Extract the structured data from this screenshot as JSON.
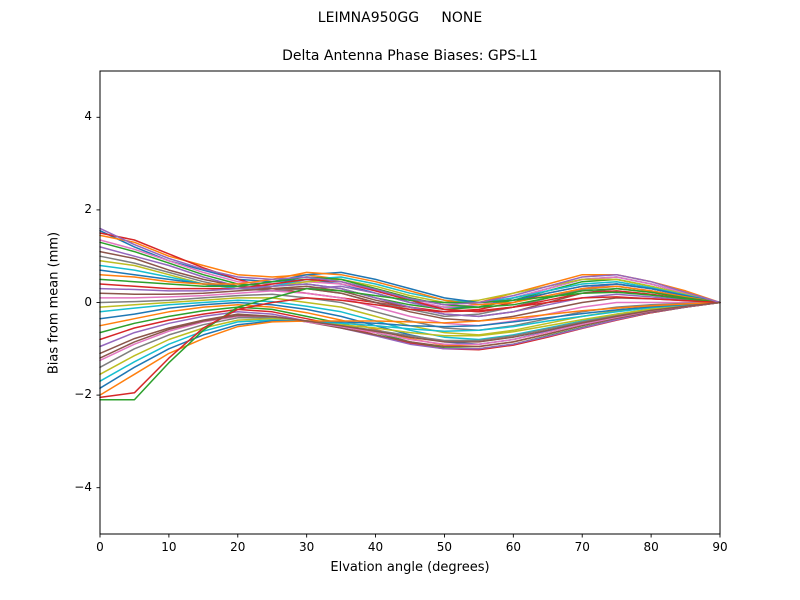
{
  "suptitle": "LEIMNA950GG     NONE",
  "chart_data": {
    "type": "line",
    "title": "Delta Antenna Phase Biases: GPS-L1",
    "xlabel": "Elvation angle (degrees)",
    "ylabel": "Bias from mean (mm)",
    "xlim": [
      0,
      90
    ],
    "ylim": [
      -5,
      5
    ],
    "grid": false,
    "legend": "none",
    "xticks": [
      0,
      10,
      20,
      30,
      40,
      50,
      60,
      70,
      80,
      90
    ],
    "xtick_labels": [
      "0",
      "10",
      "20",
      "30",
      "40",
      "50",
      "60",
      "70",
      "80",
      "90"
    ],
    "yticks": [
      -4,
      -2,
      0,
      2,
      4
    ],
    "ytick_labels": [
      "−4",
      "−2",
      "0",
      "2",
      "4"
    ],
    "palette": [
      "#1f77b4",
      "#ff7f0e",
      "#2ca02c",
      "#d62728",
      "#9467bd",
      "#8c564b",
      "#e377c2",
      "#7f7f7f",
      "#bcbd22",
      "#17becf"
    ],
    "x": [
      0,
      5,
      10,
      15,
      20,
      25,
      30,
      35,
      40,
      45,
      50,
      55,
      60,
      65,
      70,
      75,
      80,
      85,
      90
    ],
    "series": [
      {
        "values": [
          1.55,
          1.2,
          0.9,
          0.7,
          0.5,
          0.45,
          0.5,
          0.4,
          0.2,
          0.0,
          -0.1,
          -0.1,
          0.1,
          0.3,
          0.5,
          0.55,
          0.4,
          0.2,
          0.0
        ]
      },
      {
        "values": [
          1.45,
          1.3,
          1.0,
          0.8,
          0.6,
          0.55,
          0.6,
          0.5,
          0.3,
          0.1,
          -0.05,
          0.0,
          0.2,
          0.4,
          0.6,
          0.6,
          0.45,
          0.25,
          0.0
        ]
      },
      {
        "values": [
          1.3,
          1.1,
          0.85,
          0.6,
          0.4,
          0.35,
          0.4,
          0.3,
          0.1,
          -0.05,
          -0.15,
          -0.1,
          0.05,
          0.25,
          0.45,
          0.5,
          0.35,
          0.18,
          0.0
        ]
      },
      {
        "values": [
          1.5,
          1.35,
          1.05,
          0.75,
          0.5,
          0.3,
          0.2,
          0.1,
          0.0,
          -0.1,
          -0.2,
          -0.15,
          0.0,
          0.2,
          0.35,
          0.4,
          0.3,
          0.15,
          0.0
        ]
      },
      {
        "values": [
          1.2,
          1.0,
          0.8,
          0.55,
          0.35,
          0.25,
          0.3,
          0.35,
          0.2,
          0.0,
          -0.15,
          -0.2,
          -0.1,
          0.1,
          0.3,
          0.4,
          0.3,
          0.15,
          0.0
        ]
      },
      {
        "values": [
          1.1,
          0.95,
          0.7,
          0.5,
          0.35,
          0.3,
          0.35,
          0.25,
          0.05,
          -0.1,
          -0.25,
          -0.3,
          -0.2,
          0.0,
          0.2,
          0.3,
          0.22,
          0.1,
          0.0
        ]
      },
      {
        "values": [
          1.35,
          1.15,
          0.9,
          0.65,
          0.45,
          0.4,
          0.45,
          0.4,
          0.25,
          0.05,
          -0.1,
          -0.05,
          0.1,
          0.3,
          0.5,
          0.55,
          0.4,
          0.2,
          0.0
        ]
      },
      {
        "values": [
          1.0,
          0.85,
          0.65,
          0.45,
          0.3,
          0.25,
          0.3,
          0.2,
          0.0,
          -0.15,
          -0.3,
          -0.25,
          -0.1,
          0.1,
          0.28,
          0.35,
          0.25,
          0.12,
          0.0
        ]
      },
      {
        "values": [
          0.9,
          0.8,
          0.6,
          0.4,
          0.3,
          0.35,
          0.45,
          0.5,
          0.35,
          0.15,
          0.0,
          0.05,
          0.2,
          0.35,
          0.5,
          0.5,
          0.35,
          0.18,
          0.0
        ]
      },
      {
        "values": [
          0.8,
          0.7,
          0.55,
          0.4,
          0.3,
          0.35,
          0.5,
          0.55,
          0.4,
          0.2,
          0.05,
          0.0,
          0.1,
          0.25,
          0.4,
          0.45,
          0.32,
          0.16,
          0.0
        ]
      },
      {
        "values": [
          0.7,
          0.6,
          0.5,
          0.4,
          0.35,
          0.45,
          0.6,
          0.65,
          0.5,
          0.3,
          0.1,
          0.0,
          0.05,
          0.2,
          0.35,
          0.4,
          0.3,
          0.15,
          0.0
        ]
      },
      {
        "values": [
          0.6,
          0.55,
          0.45,
          0.4,
          0.4,
          0.5,
          0.65,
          0.6,
          0.45,
          0.25,
          0.05,
          -0.05,
          0.0,
          0.15,
          0.3,
          0.35,
          0.25,
          0.12,
          0.0
        ]
      },
      {
        "values": [
          0.5,
          0.45,
          0.4,
          0.35,
          0.35,
          0.45,
          0.55,
          0.5,
          0.3,
          0.1,
          -0.05,
          -0.1,
          -0.05,
          0.1,
          0.25,
          0.3,
          0.22,
          0.1,
          0.0
        ]
      },
      {
        "values": [
          0.4,
          0.35,
          0.3,
          0.3,
          0.3,
          0.4,
          0.5,
          0.45,
          0.25,
          0.05,
          -0.15,
          -0.2,
          -0.1,
          0.05,
          0.2,
          0.25,
          0.18,
          0.08,
          0.0
        ]
      },
      {
        "values": [
          0.3,
          0.28,
          0.25,
          0.25,
          0.3,
          0.35,
          0.4,
          0.3,
          0.1,
          -0.1,
          -0.25,
          -0.3,
          -0.2,
          -0.05,
          0.1,
          0.18,
          0.12,
          0.06,
          0.0
        ]
      },
      {
        "values": [
          0.2,
          0.18,
          0.18,
          0.2,
          0.25,
          0.3,
          0.3,
          0.2,
          0.0,
          -0.2,
          -0.35,
          -0.4,
          -0.3,
          -0.15,
          0.0,
          0.1,
          0.08,
          0.04,
          0.0
        ]
      },
      {
        "values": [
          0.1,
          0.1,
          0.12,
          0.15,
          0.2,
          0.25,
          0.2,
          0.1,
          -0.1,
          -0.3,
          -0.45,
          -0.5,
          -0.4,
          -0.25,
          -0.1,
          0.0,
          0.0,
          0.0,
          0.0
        ]
      },
      {
        "values": [
          0.0,
          0.02,
          0.05,
          0.1,
          0.15,
          0.18,
          0.1,
          0.0,
          -0.2,
          -0.4,
          -0.55,
          -0.6,
          -0.5,
          -0.35,
          -0.2,
          -0.1,
          -0.05,
          -0.02,
          0.0
        ]
      },
      {
        "values": [
          -0.1,
          -0.05,
          0.0,
          0.05,
          0.1,
          0.1,
          0.0,
          -0.1,
          -0.3,
          -0.5,
          -0.65,
          -0.7,
          -0.6,
          -0.45,
          -0.3,
          -0.18,
          -0.1,
          -0.05,
          0.0
        ]
      },
      {
        "values": [
          -0.2,
          -0.12,
          -0.05,
          0.0,
          0.05,
          0.02,
          -0.08,
          -0.2,
          -0.4,
          -0.6,
          -0.75,
          -0.8,
          -0.7,
          -0.55,
          -0.4,
          -0.25,
          -0.14,
          -0.07,
          0.0
        ]
      },
      {
        "values": [
          -0.35,
          -0.25,
          -0.12,
          -0.05,
          0.0,
          -0.05,
          -0.15,
          -0.3,
          -0.5,
          -0.7,
          -0.85,
          -0.9,
          -0.8,
          -0.62,
          -0.45,
          -0.3,
          -0.18,
          -0.09,
          0.0
        ]
      },
      {
        "values": [
          -0.5,
          -0.35,
          -0.2,
          -0.1,
          -0.05,
          -0.1,
          -0.22,
          -0.38,
          -0.58,
          -0.78,
          -0.92,
          -0.95,
          -0.85,
          -0.68,
          -0.5,
          -0.34,
          -0.2,
          -0.1,
          0.0
        ]
      },
      {
        "values": [
          -0.65,
          -0.45,
          -0.3,
          -0.18,
          -0.1,
          -0.15,
          -0.3,
          -0.45,
          -0.65,
          -0.85,
          -0.98,
          -1.0,
          -0.9,
          -0.72,
          -0.54,
          -0.37,
          -0.22,
          -0.1,
          0.0
        ]
      },
      {
        "values": [
          -0.8,
          -0.55,
          -0.38,
          -0.25,
          -0.15,
          -0.2,
          -0.35,
          -0.5,
          -0.7,
          -0.88,
          -1.0,
          -1.02,
          -0.92,
          -0.75,
          -0.56,
          -0.38,
          -0.22,
          -0.1,
          0.0
        ]
      },
      {
        "values": [
          -0.95,
          -0.65,
          -0.45,
          -0.3,
          -0.2,
          -0.25,
          -0.4,
          -0.55,
          -0.72,
          -0.9,
          -1.0,
          -1.0,
          -0.9,
          -0.73,
          -0.55,
          -0.37,
          -0.21,
          -0.1,
          0.0
        ]
      },
      {
        "values": [
          -1.1,
          -0.78,
          -0.55,
          -0.38,
          -0.25,
          -0.3,
          -0.42,
          -0.55,
          -0.7,
          -0.85,
          -0.95,
          -0.95,
          -0.85,
          -0.68,
          -0.5,
          -0.34,
          -0.2,
          -0.09,
          0.0
        ]
      },
      {
        "values": [
          -1.25,
          -0.9,
          -0.62,
          -0.42,
          -0.3,
          -0.32,
          -0.42,
          -0.52,
          -0.65,
          -0.8,
          -0.9,
          -0.9,
          -0.8,
          -0.64,
          -0.47,
          -0.32,
          -0.18,
          -0.08,
          0.0
        ]
      },
      {
        "values": [
          -1.4,
          -1.0,
          -0.7,
          -0.48,
          -0.33,
          -0.33,
          -0.4,
          -0.5,
          -0.6,
          -0.72,
          -0.82,
          -0.82,
          -0.72,
          -0.57,
          -0.42,
          -0.28,
          -0.16,
          -0.07,
          0.0
        ]
      },
      {
        "values": [
          -1.55,
          -1.15,
          -0.8,
          -0.55,
          -0.38,
          -0.35,
          -0.4,
          -0.48,
          -0.55,
          -0.65,
          -0.72,
          -0.72,
          -0.63,
          -0.5,
          -0.37,
          -0.25,
          -0.14,
          -0.06,
          0.0
        ]
      },
      {
        "values": [
          -1.7,
          -1.28,
          -0.9,
          -0.62,
          -0.42,
          -0.38,
          -0.4,
          -0.45,
          -0.5,
          -0.57,
          -0.62,
          -0.6,
          -0.52,
          -0.4,
          -0.3,
          -0.2,
          -0.11,
          -0.05,
          0.0
        ]
      },
      {
        "values": [
          -1.85,
          -1.4,
          -1.0,
          -0.7,
          -0.48,
          -0.4,
          -0.4,
          -0.42,
          -0.45,
          -0.5,
          -0.52,
          -0.5,
          -0.42,
          -0.33,
          -0.24,
          -0.16,
          -0.09,
          -0.04,
          0.0
        ]
      },
      {
        "values": [
          -2.0,
          -1.55,
          -1.1,
          -0.78,
          -0.52,
          -0.42,
          -0.4,
          -0.4,
          -0.4,
          -0.42,
          -0.44,
          -0.4,
          -0.34,
          -0.26,
          -0.18,
          -0.12,
          -0.07,
          -0.03,
          0.0
        ]
      },
      {
        "values": [
          -2.1,
          -2.1,
          -1.3,
          -0.6,
          -0.1,
          0.1,
          0.3,
          0.25,
          0.15,
          0.05,
          0.0,
          0.0,
          0.05,
          0.12,
          0.2,
          0.22,
          0.16,
          0.08,
          0.0
        ]
      },
      {
        "values": [
          -2.05,
          -1.95,
          -1.2,
          -0.55,
          -0.15,
          0.0,
          0.1,
          0.05,
          -0.05,
          -0.15,
          -0.2,
          -0.18,
          -0.1,
          0.0,
          0.1,
          0.12,
          0.08,
          0.04,
          0.0
        ]
      },
      {
        "values": [
          1.6,
          1.25,
          0.95,
          0.72,
          0.55,
          0.5,
          0.55,
          0.45,
          0.28,
          0.08,
          -0.05,
          0.0,
          0.15,
          0.35,
          0.55,
          0.6,
          0.45,
          0.22,
          0.0
        ]
      },
      {
        "values": [
          -1.2,
          -0.85,
          -0.58,
          -0.4,
          -0.28,
          -0.3,
          -0.4,
          -0.5,
          -0.62,
          -0.75,
          -0.85,
          -0.85,
          -0.75,
          -0.6,
          -0.44,
          -0.3,
          -0.17,
          -0.08,
          0.0
        ]
      }
    ]
  }
}
